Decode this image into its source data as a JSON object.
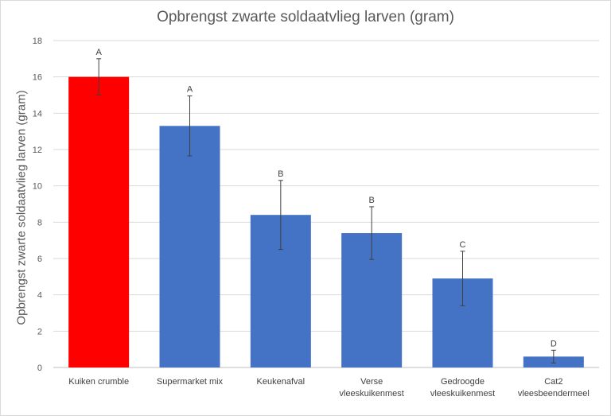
{
  "chart_data": {
    "type": "bar",
    "title": "Opbrengst zwarte soldaatvlieg larven (gram)",
    "xlabel": "",
    "ylabel": "Opbrengst zwarte soldaatvlieg larven (gram)",
    "ylim": [
      0,
      18
    ],
    "yticks": [
      "0",
      "2",
      "4",
      "6",
      "8",
      "10",
      "12",
      "14",
      "16",
      "18"
    ],
    "grid": true,
    "legend": "none",
    "categories": [
      [
        "Kuiken crumble"
      ],
      [
        "Supermarket mix"
      ],
      [
        "Keukenafval"
      ],
      [
        "Verse",
        "vleeskuikenmest"
      ],
      [
        "Gedroogde",
        "vleeskuikenmest"
      ],
      [
        "Cat2",
        "vleesbeendermeel"
      ]
    ],
    "values": [
      16.0,
      13.3,
      8.4,
      7.4,
      4.9,
      0.6
    ],
    "error": [
      1.0,
      1.65,
      1.9,
      1.45,
      1.5,
      0.35
    ],
    "significance_labels": [
      "A",
      "A",
      "B",
      "B",
      "C",
      "D"
    ],
    "colors": [
      "#ff0000",
      "#4472c4",
      "#4472c4",
      "#4472c4",
      "#4472c4",
      "#4472c4"
    ]
  }
}
